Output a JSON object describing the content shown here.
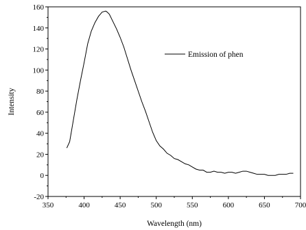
{
  "chart_data": {
    "type": "line",
    "title": "",
    "xlabel": "Wavelength (nm)",
    "ylabel": "Intensity",
    "xlim": [
      350,
      700
    ],
    "ylim": [
      -20,
      160
    ],
    "x_ticks": [
      350,
      400,
      450,
      500,
      550,
      600,
      650,
      700
    ],
    "y_ticks": [
      -20,
      0,
      20,
      40,
      60,
      80,
      100,
      120,
      140,
      160
    ],
    "x_tick_labels": [
      "350",
      "400",
      "450",
      "500",
      "550",
      "600",
      "650",
      "700"
    ],
    "y_tick_labels": [
      "-20",
      "0",
      "20",
      "40",
      "60",
      "80",
      "100",
      "120",
      "140",
      "160"
    ],
    "grid": false,
    "legend_position": "top-right",
    "line_color": "#000000",
    "series": [
      {
        "name": "Emission of phen",
        "x": [
          376,
          380,
          385,
          390,
          395,
          400,
          405,
          410,
          415,
          420,
          425,
          430,
          432,
          435,
          440,
          445,
          450,
          455,
          460,
          465,
          470,
          475,
          480,
          485,
          490,
          495,
          500,
          505,
          510,
          515,
          520,
          525,
          530,
          535,
          540,
          545,
          550,
          555,
          560,
          565,
          570,
          575,
          580,
          585,
          590,
          595,
          600,
          605,
          610,
          615,
          620,
          625,
          630,
          635,
          640,
          645,
          650,
          655,
          660,
          665,
          670,
          675,
          680,
          685,
          690
        ],
        "values": [
          26,
          32,
          52,
          72,
          90,
          107,
          125,
          137,
          145,
          151,
          155,
          156,
          155,
          153,
          146,
          139,
          131,
          122,
          111,
          100,
          90,
          80,
          70,
          61,
          51,
          41,
          33,
          28,
          25,
          21,
          19,
          16,
          15,
          13,
          11,
          10,
          8,
          6,
          5,
          5,
          3,
          3,
          4,
          3,
          3,
          2,
          3,
          3,
          2,
          3,
          4,
          4,
          3,
          2,
          1,
          1,
          1,
          0,
          0,
          0,
          1,
          1,
          1,
          2,
          2
        ]
      }
    ]
  }
}
